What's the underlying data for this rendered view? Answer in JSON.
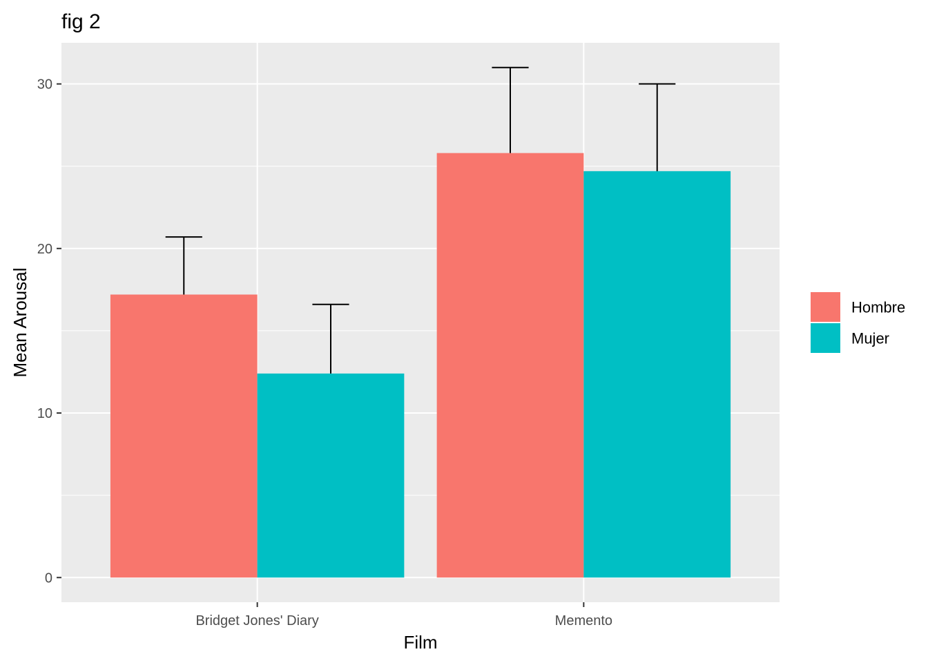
{
  "chart_data": {
    "type": "bar",
    "title": "fig 2",
    "xlabel": "Film",
    "ylabel": "Mean Arousal",
    "categories": [
      "Bridget Jones' Diary",
      "Memento"
    ],
    "series": [
      {
        "name": "Hombre",
        "color": "#F8766D",
        "values": [
          17.2,
          25.8
        ],
        "error_upper": [
          20.7,
          31.0
        ]
      },
      {
        "name": "Mujer",
        "color": "#00BFC4",
        "values": [
          12.4,
          24.7
        ],
        "error_upper": [
          16.6,
          30.0
        ]
      }
    ],
    "ylim": [
      -1.5,
      32.5
    ],
    "yticks": [
      0,
      10,
      20,
      30
    ],
    "grid": true,
    "panel_background": "#EBEBEB",
    "legend_position": "right"
  }
}
